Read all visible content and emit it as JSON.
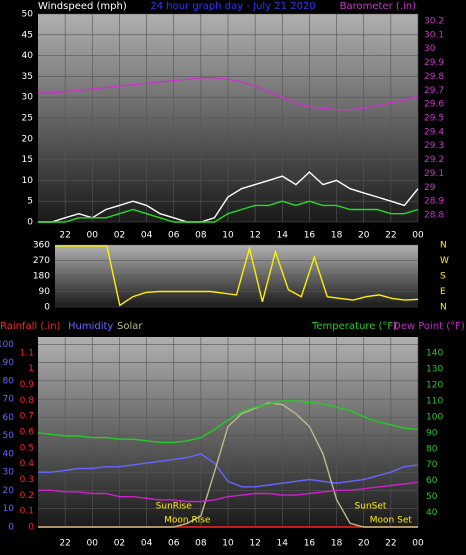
{
  "chart_data": [
    {
      "type": "line",
      "title": "24 hour graph day - July 21 2020",
      "ylabel": "Windspeed (mph)",
      "y2label": "Barometer (.in)",
      "x": [
        0,
        1,
        2,
        3,
        4,
        5,
        6,
        7,
        8,
        9,
        10,
        11,
        12,
        13,
        14,
        15,
        16,
        17,
        18,
        19,
        20,
        21,
        22,
        23,
        24,
        25,
        26,
        27,
        28
      ],
      "xlim": [
        0,
        28
      ],
      "xticks": [
        {
          "value": 2,
          "label": "22"
        },
        {
          "value": 4,
          "label": "00"
        },
        {
          "value": 6,
          "label": "02"
        },
        {
          "value": 8,
          "label": "04"
        },
        {
          "value": 10,
          "label": "06"
        },
        {
          "value": 12,
          "label": "08"
        },
        {
          "value": 14,
          "label": "10"
        },
        {
          "value": 16,
          "label": "12"
        },
        {
          "value": 18,
          "label": "14"
        },
        {
          "value": 20,
          "label": "16"
        },
        {
          "value": 22,
          "label": "18"
        },
        {
          "value": 24,
          "label": "20"
        },
        {
          "value": 26,
          "label": "22"
        },
        {
          "value": 28,
          "label": "00"
        }
      ],
      "ylim": [
        0,
        50
      ],
      "yticks": [
        0,
        5,
        10,
        15,
        20,
        25,
        30,
        35,
        40,
        45,
        50
      ],
      "y2lim": [
        28.75,
        30.25
      ],
      "y2ticks": [
        28.8,
        28.9,
        29,
        29.1,
        29.2,
        29.3,
        29.4,
        29.5,
        29.6,
        29.7,
        29.8,
        29.9,
        30,
        30.1,
        30.2
      ],
      "grid": true,
      "series": [
        {
          "color": "#ffffff",
          "values": [
            0,
            0,
            1,
            2,
            1,
            3,
            4,
            5,
            4,
            2,
            1,
            0,
            0,
            1,
            6,
            8,
            9,
            10,
            11,
            9,
            12,
            9,
            10,
            8,
            7,
            6,
            5,
            4,
            8
          ]
        },
        {
          "color": "#22dd22",
          "values": [
            0,
            0,
            0,
            1,
            1,
            1,
            2,
            3,
            2,
            1,
            0,
            0,
            0,
            0,
            2,
            3,
            4,
            4,
            5,
            4,
            5,
            4,
            4,
            3,
            3,
            3,
            2,
            2,
            3
          ]
        },
        {
          "color": "#cc33cc",
          "axis": "y2",
          "values": [
            29.68,
            29.68,
            29.69,
            29.7,
            29.71,
            29.72,
            29.73,
            29.74,
            29.75,
            29.76,
            29.77,
            29.78,
            29.79,
            29.79,
            29.78,
            29.76,
            29.73,
            29.69,
            29.65,
            29.61,
            29.58,
            29.57,
            29.56,
            29.56,
            29.57,
            29.59,
            29.61,
            29.63,
            29.66
          ]
        }
      ]
    },
    {
      "type": "line",
      "x": [
        0,
        1,
        2,
        3,
        4,
        5,
        6,
        7,
        8,
        9,
        10,
        11,
        12,
        13,
        14,
        15,
        16,
        17,
        18,
        19,
        20,
        21,
        22,
        23,
        24,
        25,
        26,
        27,
        28
      ],
      "xlim": [
        0,
        28
      ],
      "ylim": [
        0,
        360
      ],
      "yticks": [
        0,
        90,
        180,
        270,
        360
      ],
      "compass": [
        "E",
        "S",
        "W",
        "N"
      ],
      "compass_ticks": [
        90,
        180,
        270,
        360
      ],
      "compass_bottom": "N",
      "grid": true,
      "series": [
        {
          "color": "#ffee00",
          "values": [
            355,
            355,
            355,
            355,
            355,
            10,
            60,
            85,
            90,
            90,
            90,
            90,
            90,
            80,
            70,
            340,
            30,
            320,
            100,
            60,
            290,
            60,
            50,
            40,
            60,
            70,
            50,
            40,
            45
          ]
        }
      ]
    },
    {
      "type": "line",
      "x": [
        0,
        1,
        2,
        3,
        4,
        5,
        6,
        7,
        8,
        9,
        10,
        11,
        12,
        13,
        14,
        15,
        16,
        17,
        18,
        19,
        20,
        21,
        22,
        23,
        24,
        25,
        26,
        27,
        28
      ],
      "xlim": [
        0,
        28
      ],
      "xticks": [
        {
          "value": 2,
          "label": "22"
        },
        {
          "value": 4,
          "label": "00"
        },
        {
          "value": 6,
          "label": "02"
        },
        {
          "value": 8,
          "label": "04"
        },
        {
          "value": 10,
          "label": "06"
        },
        {
          "value": 12,
          "label": "08"
        },
        {
          "value": 14,
          "label": "10"
        },
        {
          "value": 16,
          "label": "12"
        },
        {
          "value": 18,
          "label": "14"
        },
        {
          "value": 20,
          "label": "16"
        },
        {
          "value": 22,
          "label": "18"
        },
        {
          "value": 24,
          "label": "20"
        },
        {
          "value": 26,
          "label": "22"
        },
        {
          "value": 28,
          "label": "00"
        }
      ],
      "ylim": [
        0,
        104
      ],
      "yticks": [
        0,
        10,
        20,
        30,
        40,
        50,
        60,
        70,
        80,
        90,
        100
      ],
      "y2lim": [
        31,
        150
      ],
      "y2ticks": [
        40,
        50,
        60,
        70,
        80,
        90,
        100,
        110,
        120,
        130,
        140
      ],
      "y3lim": [
        0,
        1.2
      ],
      "y3ticks": [
        0,
        0.1,
        0.2,
        0.3,
        0.4,
        0.5,
        0.6,
        0.7,
        0.8,
        0.9,
        1,
        1.1
      ],
      "grid": true,
      "series": [
        {
          "name": "Rainfall (.in)",
          "color": "#ff2222",
          "axis": "y3",
          "values": [
            0,
            0,
            0,
            0,
            0,
            0,
            0,
            0,
            0,
            0,
            0,
            0,
            0,
            0,
            0,
            0,
            0,
            0,
            0,
            0,
            0,
            0,
            0,
            0,
            0,
            0,
            0,
            0,
            0
          ]
        },
        {
          "name": "Humidity",
          "color": "#6666ff",
          "values": [
            30,
            30,
            31,
            32,
            32,
            33,
            33,
            34,
            35,
            36,
            37,
            38,
            40,
            35,
            25,
            22,
            22,
            23,
            24,
            25,
            26,
            25,
            24,
            25,
            26,
            28,
            30,
            33,
            34
          ]
        },
        {
          "name": "Solar",
          "color": "#bbbb88",
          "values": [
            0,
            0,
            0,
            0,
            0,
            0,
            0,
            0,
            0,
            0,
            0,
            2,
            6,
            30,
            55,
            62,
            65,
            68,
            67,
            62,
            55,
            40,
            15,
            2,
            0,
            0,
            0,
            0,
            0
          ]
        },
        {
          "name": "Temperature (°F)",
          "color": "#22cc22",
          "axis": "y2",
          "values": [
            90,
            89,
            88,
            88,
            87,
            87,
            86,
            86,
            85,
            84,
            84,
            85,
            87,
            92,
            98,
            103,
            106,
            108,
            110,
            110,
            109,
            108,
            106,
            104,
            100,
            97,
            95,
            93,
            92
          ]
        },
        {
          "name": "Dew Point (°F)",
          "color": "#cc22cc",
          "axis": "y2",
          "values": [
            54,
            54,
            53,
            53,
            52,
            52,
            50,
            50,
            49,
            48,
            48,
            47,
            47,
            48,
            50,
            51,
            52,
            52,
            51,
            51,
            52,
            53,
            54,
            54,
            55,
            56,
            57,
            58,
            59
          ]
        }
      ],
      "annotations": [
        {
          "text": "SunRise",
          "x": 10
        },
        {
          "text": "Moon Rise",
          "x": 11
        },
        {
          "text": "SunSet",
          "x": 24.5
        },
        {
          "text": "Moon Set",
          "x": 26
        }
      ]
    }
  ]
}
